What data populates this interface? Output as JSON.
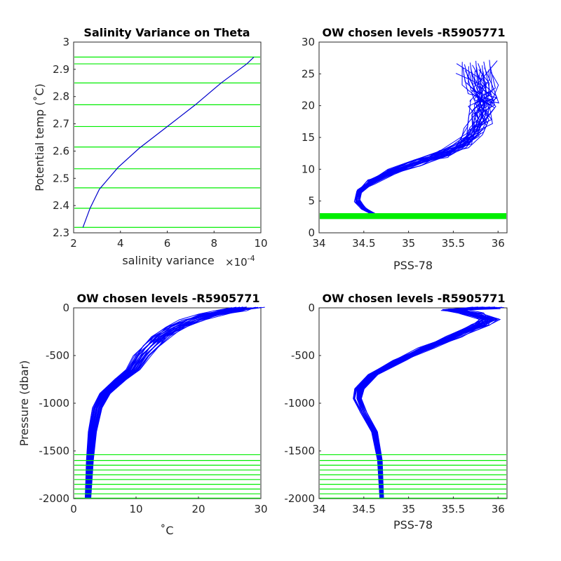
{
  "chart_data": [
    {
      "type": "line",
      "title": "Salinity Variance on Theta",
      "xlabel": "salinity variance",
      "x_exponent_label": "×10",
      "x_exponent_power": "-4",
      "ylabel": "Potential temp (˚C)",
      "xlim": [
        2,
        10
      ],
      "ylim": [
        2.3,
        3
      ],
      "xticks": [
        "2",
        "4",
        "6",
        "8",
        "10"
      ],
      "yticks": [
        "2.3",
        "2.4",
        "2.5",
        "2.6",
        "2.7",
        "2.8",
        "2.9",
        "3"
      ],
      "series": [
        {
          "color": "#0000cc",
          "x": [
            2.4,
            2.7,
            3.1,
            3.9,
            4.8,
            6.0,
            7.2,
            8.3,
            9.4,
            9.7
          ],
          "y": [
            2.32,
            2.39,
            2.46,
            2.54,
            2.61,
            2.69,
            2.77,
            2.85,
            2.92,
            2.945
          ]
        }
      ],
      "levels": [
        2.32,
        2.39,
        2.465,
        2.535,
        2.615,
        2.69,
        2.77,
        2.85,
        2.92,
        2.945
      ],
      "level_color": "#00ee00"
    },
    {
      "type": "line",
      "title": "OW chosen levels -R5905771",
      "xlabel": "PSS-78",
      "ylabel": "",
      "xlim": [
        34,
        36.1
      ],
      "ylim": [
        0,
        30
      ],
      "xticks": [
        "34",
        "34.5",
        "35",
        "35.5",
        "36"
      ],
      "yticks": [
        "0",
        "5",
        "10",
        "15",
        "20",
        "25",
        "30"
      ],
      "profile_color": "#0000ff",
      "profile_count": 30,
      "mean_profile": {
        "x": [
          34.68,
          34.6,
          34.5,
          34.43,
          34.45,
          34.58,
          34.8,
          35.1,
          35.4,
          35.62,
          35.75,
          35.8,
          35.82,
          35.85,
          35.8,
          35.75
        ],
        "y": [
          2.3,
          3,
          3.8,
          5,
          6.5,
          8,
          9.5,
          11,
          12.5,
          14,
          16,
          18,
          20,
          21,
          23,
          26
        ]
      },
      "levels": [
        2.3,
        2.4,
        2.5,
        2.6,
        2.7,
        2.8,
        2.9,
        2.95
      ],
      "level_color": "#00ee00"
    },
    {
      "type": "line",
      "title": "OW chosen levels -R5905771",
      "xlabel": "˚C",
      "ylabel": "Pressure (dbar)",
      "xlim": [
        0,
        30
      ],
      "ylim": [
        -2000,
        0
      ],
      "xticks": [
        "0",
        "10",
        "20",
        "30"
      ],
      "yticks": [
        "-2000",
        "-1500",
        "-1000",
        "-500",
        "0"
      ],
      "profile_color": "#0000ff",
      "profile_count": 30,
      "mean_profile": {
        "x": [
          2.3,
          2.6,
          3.0,
          3.8,
          5.0,
          7.5,
          9.5,
          11.0,
          12.5,
          14.0,
          16.5,
          19.0,
          22.0,
          25.0,
          28.0
        ],
        "y": [
          -2000,
          -1600,
          -1300,
          -1050,
          -900,
          -750,
          -650,
          -500,
          -400,
          -300,
          -200,
          -130,
          -70,
          -30,
          0
        ]
      },
      "levels": [
        -1540,
        -1600,
        -1650,
        -1700,
        -1750,
        -1800,
        -1850,
        -1900,
        -1950,
        -1995
      ],
      "level_color": "#00ee00"
    },
    {
      "type": "line",
      "title": "OW chosen levels -R5905771",
      "xlabel": "PSS-78",
      "ylabel": "",
      "xlim": [
        34,
        36.1
      ],
      "ylim": [
        -2000,
        0
      ],
      "xticks": [
        "34",
        "34.5",
        "35",
        "35.5",
        "36"
      ],
      "yticks": [
        "-2000",
        "-1500",
        "-1000",
        "-500",
        "0"
      ],
      "profile_color": "#0000ff",
      "profile_count": 30,
      "mean_profile": {
        "x": [
          34.7,
          34.68,
          34.62,
          34.5,
          34.43,
          34.45,
          34.6,
          34.9,
          35.2,
          35.5,
          35.8,
          35.9,
          35.7,
          35.5,
          35.9
        ],
        "y": [
          -2000,
          -1600,
          -1300,
          -1100,
          -950,
          -850,
          -700,
          -550,
          -420,
          -300,
          -180,
          -120,
          -60,
          -20,
          0
        ]
      },
      "levels": [
        -1540,
        -1600,
        -1650,
        -1700,
        -1750,
        -1800,
        -1850,
        -1900,
        -1950,
        -1995
      ],
      "level_color": "#00ee00"
    }
  ]
}
